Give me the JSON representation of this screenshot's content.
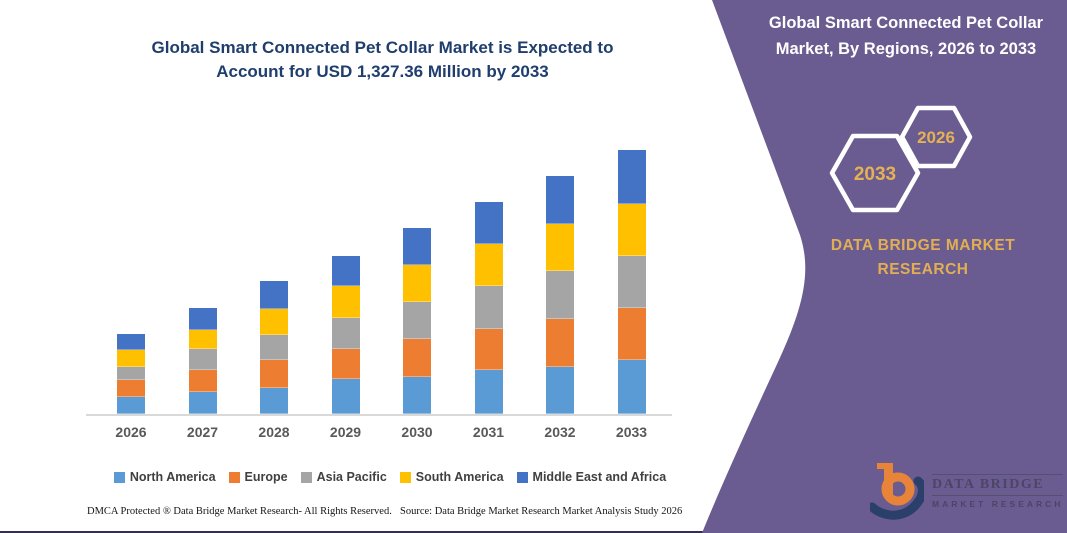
{
  "colors": {
    "panel_bg": "#6A5C90",
    "gold": "#E5B155",
    "chart_title": "#1F3E6E",
    "axis_label": "#595959",
    "legend_text": "#404040",
    "axis_line": "#D9D9D9",
    "bottom_rule": "#332E52",
    "logo_orange": "#E8833A",
    "logo_navy": "#2B3F6B",
    "logo_text": "#4B4566",
    "white": "#FFFFFF"
  },
  "chart": {
    "title_line1": "Global Smart Connected Pet Collar Market is Expected to",
    "title_line2": "Account for USD 1,327.36 Million by 2033"
  },
  "chart_data": {
    "type": "bar",
    "stacked": true,
    "title": "Global Smart Connected Pet Collar Market is Expected to Account for USD 1,327.36 Million by 2033",
    "unit": "USD Million",
    "categories": [
      "2026",
      "2027",
      "2028",
      "2029",
      "2030",
      "2031",
      "2032",
      "2033"
    ],
    "series": [
      {
        "name": "North America",
        "color": "#5B9BD5",
        "values": [
          85,
          112,
          132,
          176,
          188,
          221,
          238,
          271
        ]
      },
      {
        "name": "Europe",
        "color": "#ED7D31",
        "values": [
          88,
          109,
          139,
          149,
          188,
          206,
          240,
          263
        ]
      },
      {
        "name": "Asia Pacific",
        "color": "#A5A5A5",
        "values": [
          63,
          104,
          124,
          156,
          186,
          218,
          241,
          261
        ]
      },
      {
        "name": "South America",
        "color": "#FFC000",
        "values": [
          85,
          97,
          134,
          164,
          188,
          210,
          235,
          263
        ]
      },
      {
        "name": "Middle East and Africa",
        "color": "#4472C4",
        "values": [
          83,
          112,
          138,
          149,
          184,
          210,
          244,
          269
        ]
      }
    ],
    "xlabel": "",
    "ylabel": "",
    "ylim": [
      0,
      1400
    ],
    "grid": false,
    "y_axis_visible": false,
    "legend_position": "bottom"
  },
  "right_panel": {
    "title": "Global Smart Connected Pet Collar Market, By Regions, 2026 to 2033",
    "hexagon_back_label": "2033",
    "hexagon_front_label": "2026",
    "brand_line1": "DATA BRIDGE MARKET",
    "brand_line2": "RESEARCH"
  },
  "logo": {
    "name_line": "DATA BRIDGE",
    "sub_line": "MARKET RESEARCH"
  },
  "footer": {
    "left": "DMCA Protected ® Data Bridge Market Research-  All Rights Reserved.",
    "right": "Source: Data Bridge Market Research  Market Analysis Study 2026"
  }
}
